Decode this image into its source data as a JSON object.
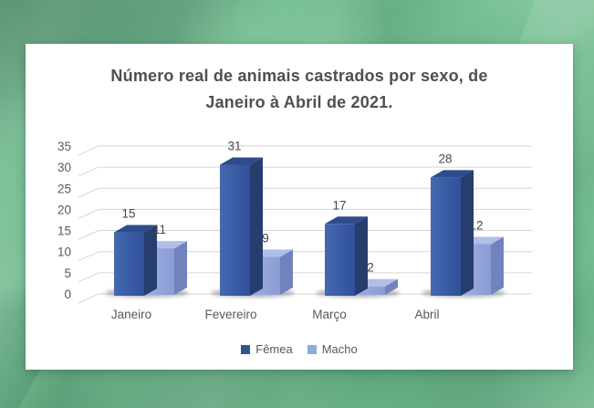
{
  "background": {
    "color": "#6cbb8b"
  },
  "chart_data": {
    "type": "bar",
    "style": "3d-clustered-column",
    "title": "Número real de animais castrados por sexo, de Janeiro à Abril de 2021.",
    "title_lines": [
      "Número real de animais castrados por sexo, de",
      "Janeiro à Abril de 2021."
    ],
    "categories": [
      "Janeiro",
      "Fevereiro",
      "Março",
      "Abril"
    ],
    "series": [
      {
        "name": "Fêmea",
        "values": [
          15,
          31,
          17,
          28
        ],
        "color": "#2F5597",
        "front_light": "#4569B0",
        "front_dark": "#30509A",
        "side": "#253E6E",
        "top": "#2E4C8B"
      },
      {
        "name": "Macho",
        "values": [
          11,
          9,
          2,
          12
        ],
        "color": "#8FAADC",
        "front_light": "#9DADDF",
        "front_dark": "#8B9DD6",
        "side": "#7183BE",
        "top": "#B1BEE7"
      }
    ],
    "yticks": [
      0,
      5,
      10,
      15,
      20,
      25,
      30,
      35
    ],
    "ylim": [
      0,
      35
    ],
    "grid": true,
    "data_labels": true,
    "legend_position": "bottom",
    "axis_color": "#595959",
    "value_label_color": "#474747",
    "grid_color": "#d6d6d6"
  }
}
